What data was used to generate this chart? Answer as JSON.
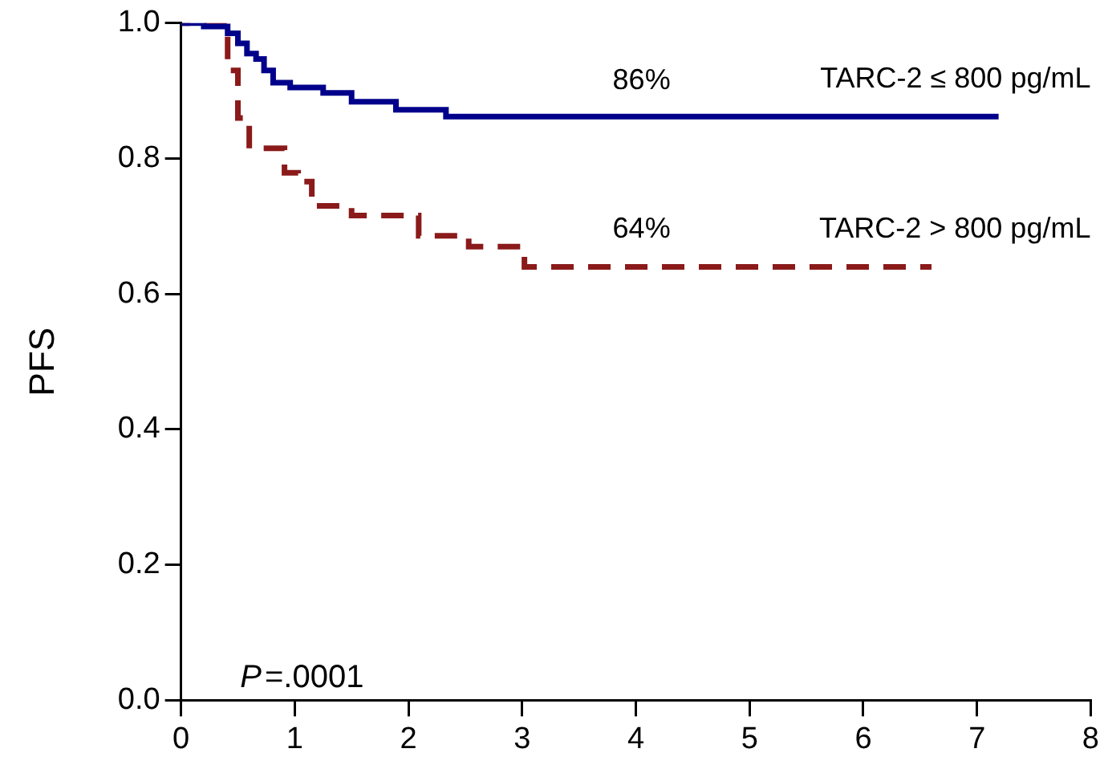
{
  "chart_data": {
    "type": "step",
    "ylabel": "PFS",
    "xlim": [
      0,
      8
    ],
    "xticks": [
      0,
      1,
      2,
      3,
      4,
      5,
      6,
      7,
      8
    ],
    "ylim": [
      0,
      1
    ],
    "yticks": [
      {
        "value": 0,
        "label": "0.0"
      },
      0.2,
      0.4,
      0.6,
      0.8,
      {
        "value": 1,
        "label": "1.0"
      }
    ],
    "grid": false,
    "legend": false,
    "series": [
      {
        "name": "TARC-2 ≤ 800 pg/mL",
        "color": "#00008b",
        "line_style": "solid",
        "x": [
          0,
          0.2,
          0.41,
          0.5,
          0.58,
          0.66,
          0.73,
          0.81,
          0.96,
          1.25,
          1.5,
          1.89,
          2.33,
          7.19
        ],
        "values": [
          1,
          0.995,
          0.985,
          0.97,
          0.955,
          0.947,
          0.93,
          0.912,
          0.905,
          0.897,
          0.884,
          0.872,
          0.862,
          0.862
        ]
      },
      {
        "name": "TARC-2 > 800 pg/mL",
        "color": "#8b1a1a",
        "line_style": "dashed",
        "x": [
          0,
          0.41,
          0.5,
          0.6,
          0.91,
          1.03,
          1.15,
          1.5,
          2.09,
          2.53,
          3.02,
          6.6
        ],
        "values": [
          1,
          0.93,
          0.86,
          0.815,
          0.779,
          0.766,
          0.73,
          0.716,
          0.686,
          0.67,
          0.64,
          0.64
        ]
      }
    ],
    "annotations": [
      {
        "text": "86%",
        "x": 4.05,
        "y": 0.86
      },
      {
        "text": "64%",
        "x": 4.05,
        "y": 0.64
      },
      "P=.0001"
    ]
  }
}
